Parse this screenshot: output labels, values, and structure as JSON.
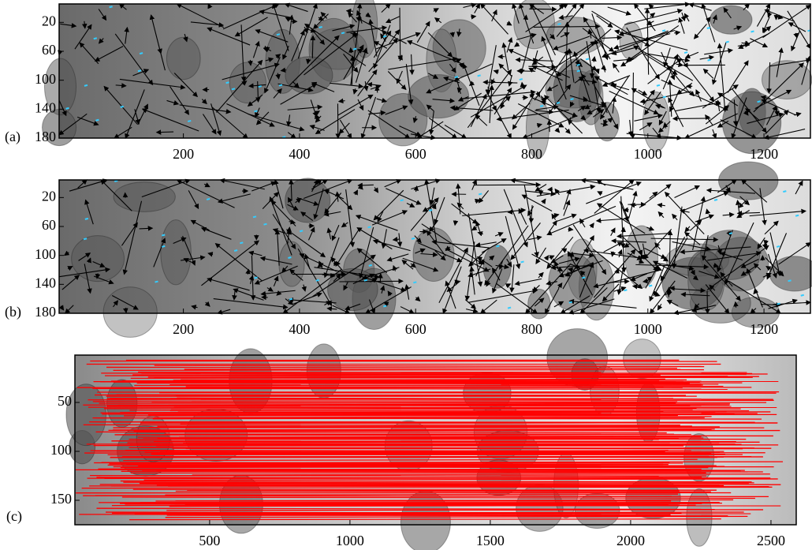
{
  "chart_data": [
    {
      "type": "image",
      "label": "(a)",
      "xlim": [
        -14,
        1280
      ],
      "ylim": [
        180,
        0
      ],
      "xticks": [
        200,
        400,
        600,
        800,
        1000,
        1200
      ],
      "yticks": [
        20,
        60,
        100,
        140,
        180
      ]
    },
    {
      "type": "image",
      "label": "(b)",
      "xlim": [
        -14,
        1280
      ],
      "ylim": [
        180,
        0
      ],
      "xticks": [
        200,
        400,
        600,
        800,
        1000,
        1200
      ],
      "yticks": [
        20,
        60,
        100,
        140,
        180
      ]
    },
    {
      "type": "image",
      "label": "(c)",
      "xlim": [
        20,
        2590
      ],
      "ylim": [
        175,
        0
      ],
      "xticks": [
        500,
        1000,
        1500,
        2000,
        2500
      ],
      "yticks": [
        50,
        100,
        150
      ]
    }
  ]
}
